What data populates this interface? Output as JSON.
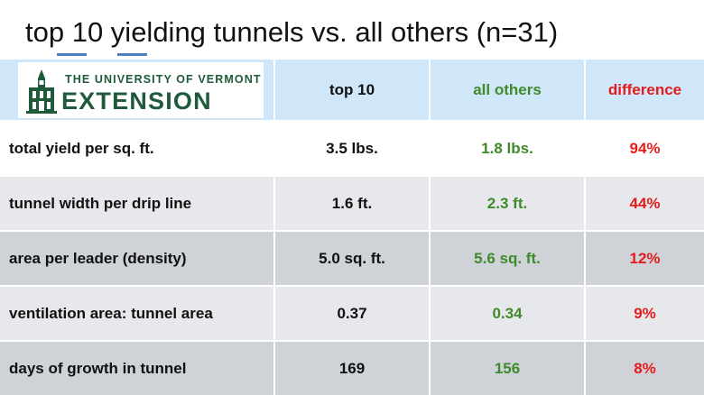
{
  "title": "top 10 yielding tunnels vs. all others (n=31)",
  "logo": {
    "line1": "THE UNIVERSITY OF VERMONT",
    "line2": "EXTENSION",
    "icon": "university-building-icon"
  },
  "header": {
    "top10": "top 10",
    "others": "all others",
    "difference": "difference"
  },
  "colors": {
    "header_bg": "#cfe7f8",
    "others_text": "#3f8a2b",
    "difference_text": "#e51c1c",
    "logo_green": "#1f5a3a"
  },
  "rows": [
    {
      "label": "total yield per sq. ft.",
      "top10": "3.5 lbs.",
      "others": "1.8 lbs.",
      "difference": "94%"
    },
    {
      "label": "tunnel width per drip line",
      "top10": "1.6 ft.",
      "others": "2.3 ft.",
      "difference": "44%"
    },
    {
      "label": "area per leader (density)",
      "top10": "5.0 sq. ft.",
      "others": "5.6 sq. ft.",
      "difference": "12%"
    },
    {
      "label": "ventilation area: tunnel area",
      "top10": "0.37",
      "others": "0.34",
      "difference": "9%"
    },
    {
      "label": "days of growth in tunnel",
      "top10": "169",
      "others": "156",
      "difference": "8%"
    }
  ]
}
